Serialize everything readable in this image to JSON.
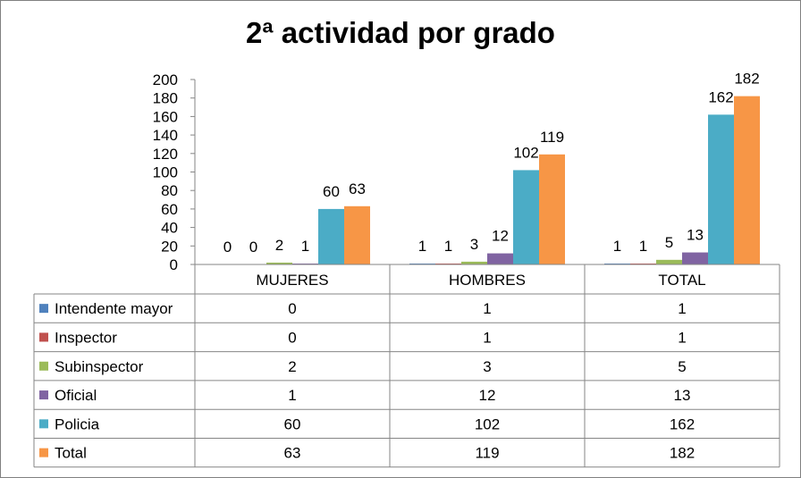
{
  "chart_data": {
    "type": "bar",
    "title": "2ª actividad por grado",
    "categories": [
      "MUJERES",
      "HOMBRES",
      "TOTAL"
    ],
    "ylim": [
      0,
      200
    ],
    "yticks": [
      "0",
      "20",
      "40",
      "60",
      "80",
      "100",
      "120",
      "140",
      "160",
      "180",
      "200"
    ],
    "grid": false,
    "legend": "data-table",
    "series": [
      {
        "name": "Intendente mayor",
        "color": "#4F81BD",
        "values": [
          0,
          1,
          1
        ]
      },
      {
        "name": "Inspector",
        "color": "#C0504D",
        "values": [
          0,
          1,
          1
        ]
      },
      {
        "name": "Subinspector",
        "color": "#9BBB59",
        "values": [
          2,
          3,
          5
        ]
      },
      {
        "name": "Oficial",
        "color": "#8064A2",
        "values": [
          1,
          12,
          13
        ]
      },
      {
        "name": "Policia",
        "color": "#4BACC6",
        "values": [
          60,
          102,
          162
        ]
      },
      {
        "name": "Total",
        "color": "#F79646",
        "values": [
          63,
          119,
          182
        ]
      }
    ]
  }
}
